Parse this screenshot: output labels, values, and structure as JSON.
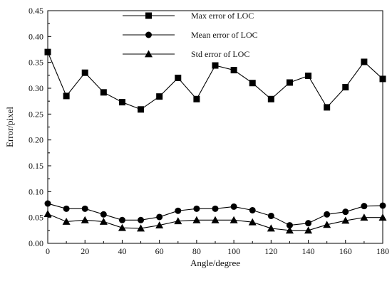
{
  "chart_data": {
    "type": "line",
    "title": "",
    "xlabel": "Angle/degree",
    "ylabel": "Error/pixel",
    "xlim": [
      0,
      180
    ],
    "ylim": [
      0.0,
      0.45
    ],
    "x_ticks": [
      0,
      20,
      40,
      60,
      80,
      100,
      120,
      140,
      160,
      180
    ],
    "y_ticks": [
      0.0,
      0.05,
      0.1,
      0.15,
      0.2,
      0.25,
      0.3,
      0.35,
      0.4,
      0.45
    ],
    "x_tick_labels": [
      "0",
      "20",
      "40",
      "60",
      "80",
      "100",
      "120",
      "140",
      "160",
      "180"
    ],
    "y_tick_labels": [
      "0.00",
      "0.05",
      "0.10",
      "0.15",
      "0.20",
      "0.25",
      "0.30",
      "0.35",
      "0.40",
      "0.45"
    ],
    "grid": false,
    "legend_position": "top-center",
    "x": [
      0,
      10,
      20,
      30,
      40,
      50,
      60,
      70,
      80,
      90,
      100,
      110,
      120,
      130,
      140,
      150,
      160,
      170,
      180
    ],
    "series": [
      {
        "name": "Max error of LOC",
        "marker": "square",
        "values": [
          0.37,
          0.285,
          0.33,
          0.292,
          0.273,
          0.259,
          0.284,
          0.32,
          0.279,
          0.344,
          0.335,
          0.31,
          0.279,
          0.311,
          0.324,
          0.263,
          0.302,
          0.351,
          0.318
        ]
      },
      {
        "name": "Mean error of LOC",
        "marker": "circle",
        "values": [
          0.077,
          0.067,
          0.067,
          0.056,
          0.045,
          0.045,
          0.051,
          0.063,
          0.067,
          0.067,
          0.071,
          0.064,
          0.053,
          0.035,
          0.039,
          0.056,
          0.061,
          0.072,
          0.073
        ]
      },
      {
        "name": "Std error of LOC",
        "marker": "triangle",
        "values": [
          0.057,
          0.042,
          0.045,
          0.042,
          0.03,
          0.029,
          0.035,
          0.043,
          0.045,
          0.045,
          0.045,
          0.041,
          0.029,
          0.025,
          0.025,
          0.036,
          0.044,
          0.05,
          0.05
        ]
      }
    ],
    "colors": {
      "line": "#000000",
      "marker": "#000000",
      "axis": "#000000",
      "background": "#ffffff"
    }
  }
}
